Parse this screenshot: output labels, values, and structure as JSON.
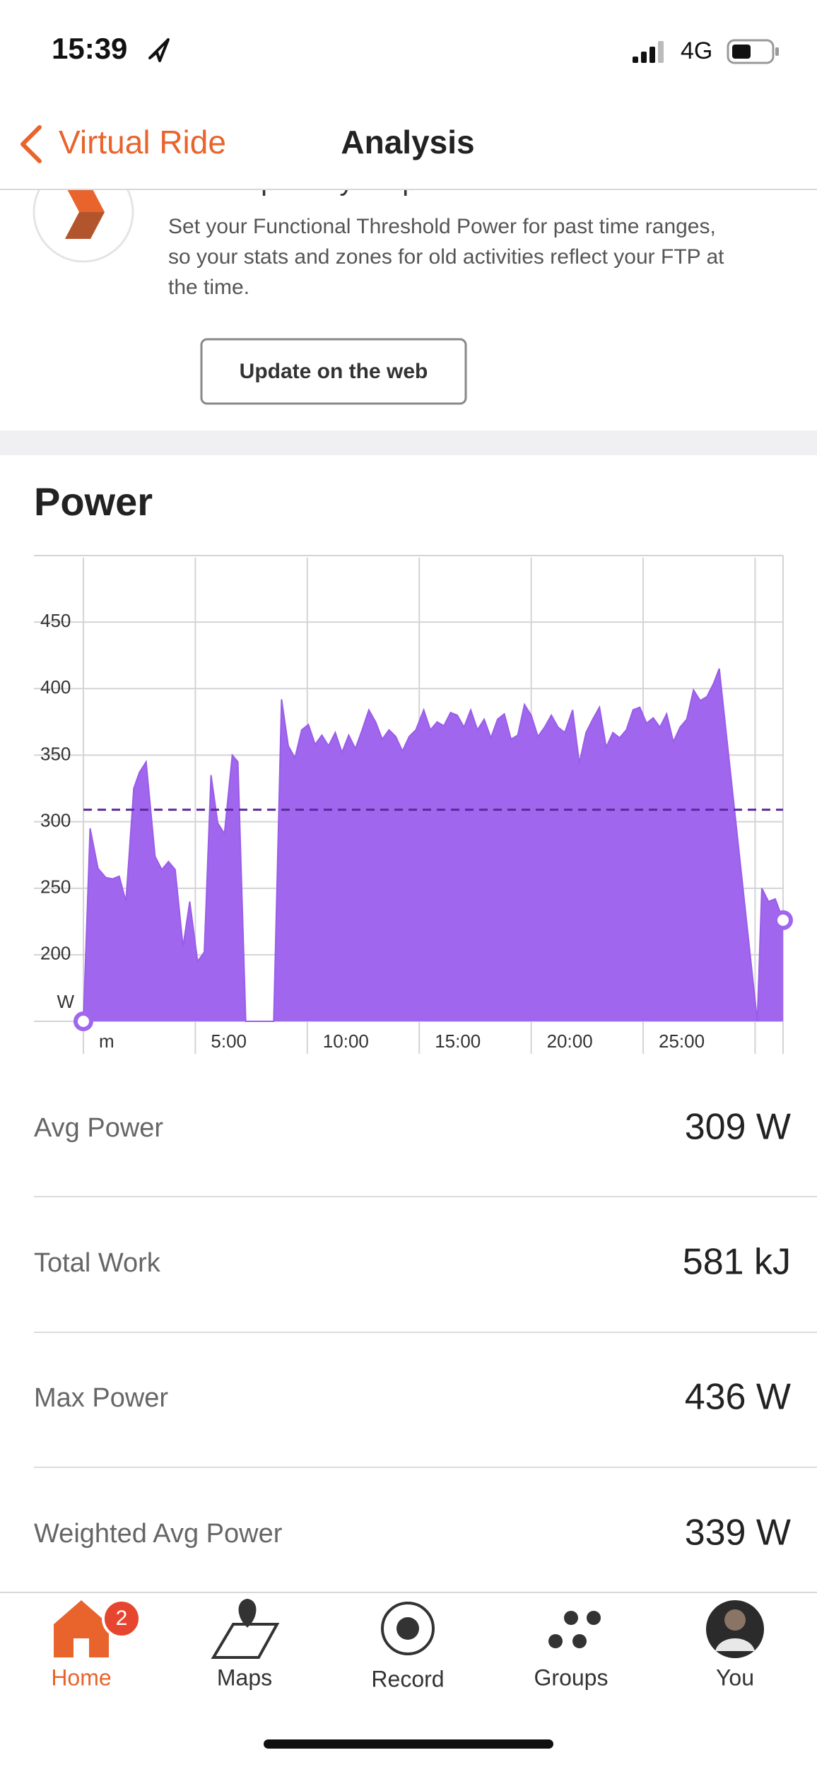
{
  "status_bar": {
    "time": "15:39",
    "network": "4G"
  },
  "nav": {
    "back": "Virtual Ride",
    "title": "Analysis"
  },
  "banner": {
    "title": "New: Update your past FTP",
    "lines": [
      "Set your Functional Threshold Power for past time ranges,",
      "so your stats and zones for old activities reflect your FTP at",
      "the time."
    ],
    "button": "Update on the web"
  },
  "section_title": "Power",
  "chart_data": {
    "type": "area",
    "color": "#a066ee",
    "line_color": "#9a5de8",
    "x_label": null,
    "avg_line": 309,
    "avg_color": "#5b2a9c",
    "grid": true,
    "xlim": [
      0,
      31.25
    ],
    "ylim": [
      150,
      500
    ],
    "xticks": [
      {
        "value": 0,
        "label": "m"
      },
      {
        "value": 5,
        "label": "5:00"
      },
      {
        "value": 10,
        "label": "10:00"
      },
      {
        "value": 15,
        "label": "15:00"
      },
      {
        "value": 20,
        "label": "20:00"
      },
      {
        "value": 25,
        "label": "25:00"
      },
      {
        "value": 30,
        "label": null
      }
    ],
    "yticks": [
      {
        "value": 150,
        "label": "W"
      },
      200,
      250,
      300,
      350,
      400,
      450
    ],
    "x": [
      0,
      0.3,
      0.65,
      1.0,
      1.3,
      1.6,
      1.9,
      2.25,
      2.5,
      2.8,
      3.2,
      3.5,
      3.8,
      4.1,
      4.45,
      4.75,
      5.1,
      5.4,
      5.7,
      6.0,
      6.3,
      6.65,
      6.9,
      7.25,
      8.5,
      8.85,
      9.15,
      9.45,
      9.75,
      10.05,
      10.35,
      10.65,
      10.95,
      11.25,
      11.55,
      11.85,
      12.15,
      12.45,
      12.75,
      13.05,
      13.35,
      13.65,
      13.95,
      14.25,
      14.55,
      14.85,
      15.2,
      15.5,
      15.8,
      16.1,
      16.4,
      16.7,
      17.0,
      17.3,
      17.6,
      17.9,
      18.2,
      18.5,
      18.8,
      19.1,
      19.4,
      19.7,
      20.0,
      20.3,
      20.6,
      20.9,
      21.2,
      21.5,
      21.85,
      22.15,
      22.45,
      22.75,
      23.05,
      23.35,
      23.65,
      23.95,
      24.25,
      24.55,
      24.85,
      25.15,
      25.45,
      25.75,
      26.05,
      26.35,
      26.65,
      26.95,
      27.25,
      27.55,
      27.85,
      28.15,
      28.4,
      30.1,
      30.3,
      30.6,
      30.9,
      31.25
    ],
    "values": [
      150,
      295,
      265,
      258,
      257,
      259,
      240,
      325,
      337,
      345,
      274,
      264,
      270,
      264,
      206,
      240,
      195,
      202,
      335,
      299,
      291,
      350,
      345,
      150,
      150,
      392,
      357,
      348,
      369,
      373,
      358,
      365,
      357,
      367,
      352,
      365,
      355,
      369,
      384,
      375,
      362,
      369,
      364,
      353,
      364,
      369,
      384,
      369,
      375,
      372,
      382,
      380,
      371,
      384,
      369,
      377,
      363,
      377,
      381,
      362,
      365,
      388,
      380,
      364,
      371,
      380,
      371,
      367,
      384,
      344,
      367,
      377,
      386,
      356,
      367,
      363,
      369,
      384,
      386,
      374,
      378,
      371,
      381,
      360,
      371,
      377,
      399,
      391,
      394,
      404,
      415,
      150,
      250,
      240,
      242,
      226
    ]
  },
  "stats": [
    {
      "label": "Avg Power",
      "value": "309 W"
    },
    {
      "label": "Total Work",
      "value": "581 kJ"
    },
    {
      "label": "Max Power",
      "value": "436 W"
    },
    {
      "label": "Weighted Avg Power",
      "value": "339 W"
    }
  ],
  "tab_bar": {
    "badge": "2",
    "tabs": [
      "Home",
      "Maps",
      "Record",
      "Groups",
      "You"
    ]
  }
}
